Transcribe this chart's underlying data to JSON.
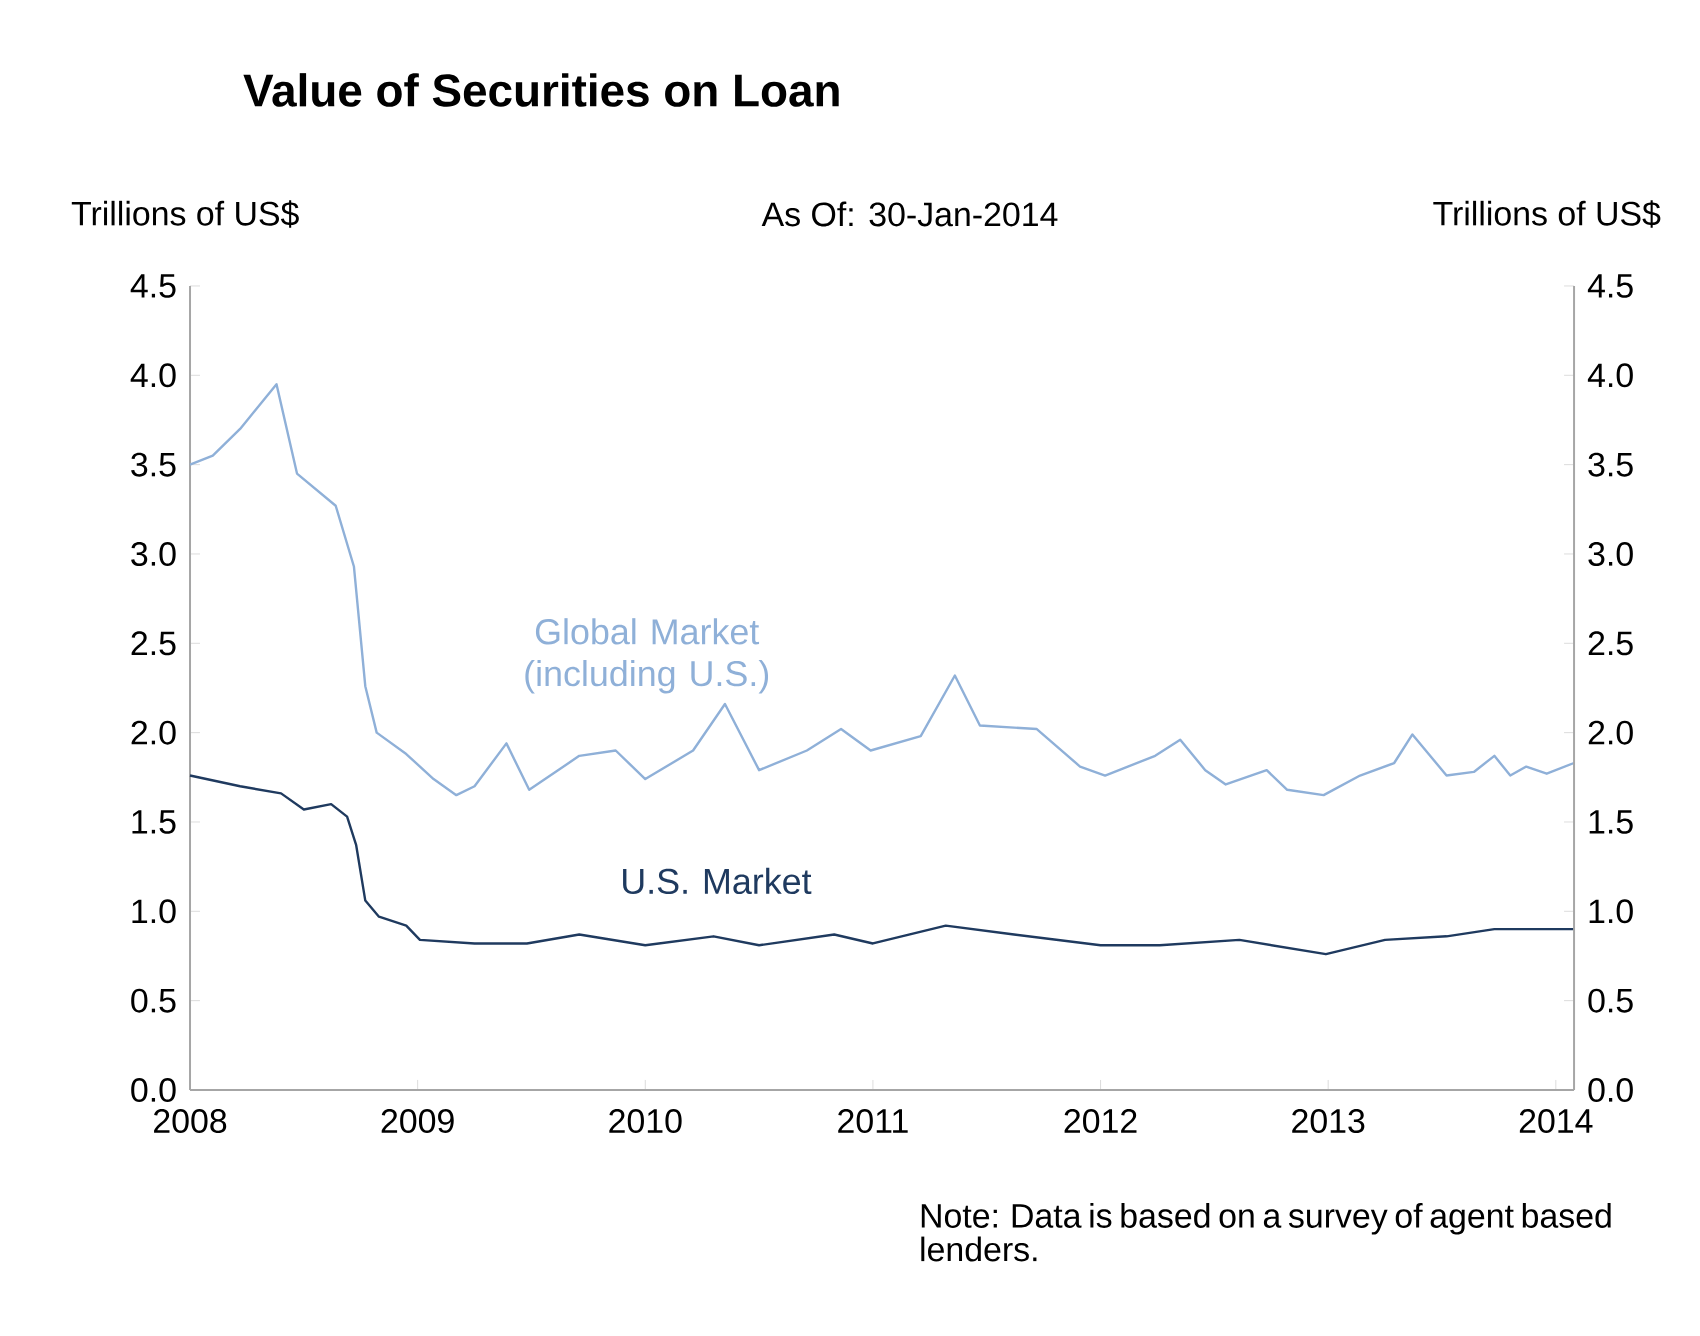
{
  "chart_data": {
    "type": "line",
    "title": "Value of Securities on Loan",
    "subtitle": "As Of: 30-Jan-2014",
    "ylabel": "Trillions of US$",
    "y2label": "Trillions of US$",
    "annotations": [
      "Note: Data is based on a survey of agent based lenders."
    ],
    "xlim": [
      2008,
      2014.08
    ],
    "xticks": [
      2008,
      2009,
      2010,
      2011,
      2012,
      2013,
      2014
    ],
    "ylim": [
      0,
      4.5
    ],
    "yticks": [
      {
        "value": 0,
        "label": "0.0"
      },
      0.5,
      {
        "value": 1,
        "label": "1.0"
      },
      1.5,
      {
        "value": 2,
        "label": "2.0"
      },
      2.5,
      {
        "value": 3,
        "label": "3.0"
      },
      3.5,
      {
        "value": 4,
        "label": "4.0"
      },
      4.5
    ],
    "y2lim": [
      0,
      4.5
    ],
    "y2ticks": [
      {
        "value": 0,
        "label": "0.0"
      },
      0.5,
      {
        "value": 1,
        "label": "1.0"
      },
      1.5,
      {
        "value": 2,
        "label": "2.0"
      },
      2.5,
      {
        "value": 3,
        "label": "3.0"
      },
      3.5,
      {
        "value": 4,
        "label": "4.0"
      },
      4.5
    ],
    "grid": false,
    "marker": "none",
    "line_style": "solid",
    "series": [
      {
        "name": "Global Market (including U.S.)",
        "color": "#8fb0d8",
        "x": [
          2008.0,
          2008.1,
          2008.22,
          2008.38,
          2008.47,
          2008.64,
          2008.72,
          2008.77,
          2008.82,
          2008.95,
          2009.07,
          2009.17,
          2009.25,
          2009.39,
          2009.49,
          2009.71,
          2009.87,
          2010.0,
          2010.21,
          2010.35,
          2010.5,
          2010.71,
          2010.86,
          2010.99,
          2011.21,
          2011.36,
          2011.47,
          2011.72,
          2011.91,
          2012.02,
          2012.24,
          2012.35,
          2012.46,
          2012.55,
          2012.73,
          2012.82,
          2012.98,
          2013.14,
          2013.29,
          2013.37,
          2013.52,
          2013.64,
          2013.73,
          2013.8,
          2013.87,
          2013.96,
          2014.08
        ],
        "values": [
          3.5,
          3.55,
          3.7,
          3.95,
          3.45,
          3.27,
          2.93,
          2.26,
          2.0,
          1.88,
          1.74,
          1.65,
          1.7,
          1.94,
          1.68,
          1.87,
          1.9,
          1.74,
          1.9,
          2.16,
          1.79,
          1.9,
          2.02,
          1.9,
          1.98,
          2.32,
          2.04,
          2.02,
          1.81,
          1.76,
          1.87,
          1.96,
          1.79,
          1.71,
          1.79,
          1.68,
          1.65,
          1.76,
          1.83,
          1.99,
          1.76,
          1.78,
          1.87,
          1.76,
          1.81,
          1.77,
          1.83
        ]
      },
      {
        "name": "U.S. Market",
        "color": "#1f3a5f",
        "x": [
          2008.0,
          2008.22,
          2008.4,
          2008.5,
          2008.62,
          2008.69,
          2008.73,
          2008.77,
          2008.83,
          2008.95,
          2009.01,
          2009.25,
          2009.48,
          2009.71,
          2010.0,
          2010.3,
          2010.5,
          2010.83,
          2011.0,
          2011.32,
          2011.62,
          2012.0,
          2012.26,
          2012.61,
          2012.99,
          2013.25,
          2013.52,
          2013.73,
          2014.08
        ],
        "values": [
          1.76,
          1.7,
          1.66,
          1.57,
          1.6,
          1.53,
          1.37,
          1.06,
          0.97,
          0.92,
          0.84,
          0.82,
          0.82,
          0.87,
          0.81,
          0.86,
          0.81,
          0.87,
          0.82,
          0.92,
          0.87,
          0.81,
          0.81,
          0.84,
          0.76,
          0.84,
          0.86,
          0.9,
          0.9
        ]
      }
    ]
  }
}
